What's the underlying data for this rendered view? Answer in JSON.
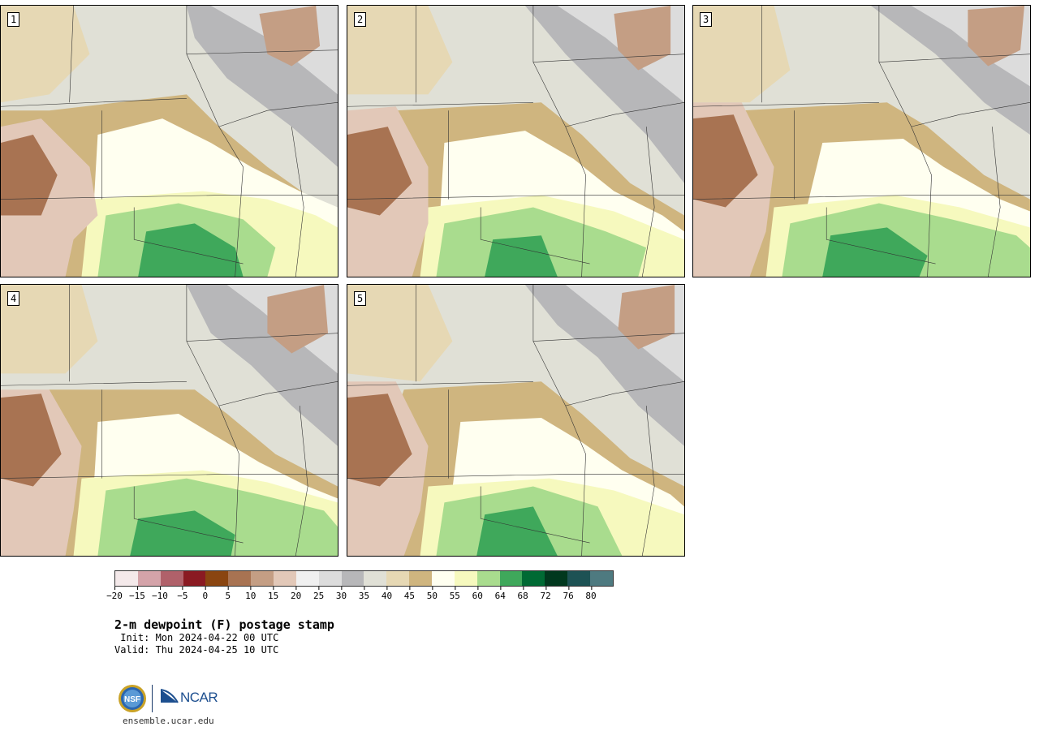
{
  "panels": [
    {
      "label": "1"
    },
    {
      "label": "2"
    },
    {
      "label": "3"
    },
    {
      "label": "4"
    },
    {
      "label": "5"
    }
  ],
  "colorbar": {
    "colors": [
      "#f4e9ea",
      "#d4a3a9",
      "#b0616a",
      "#8a1a22",
      "#8a4510",
      "#a87352",
      "#c49e84",
      "#e2c8b8",
      "#f0f0f0",
      "#dcdcdc",
      "#b7b7b9",
      "#e0e0d6",
      "#e6d8b4",
      "#cfb57f",
      "#fffff0",
      "#f6f9be",
      "#a9dc8e",
      "#3fa85b",
      "#006a34",
      "#01381e",
      "#1d5254",
      "#4e7a80"
    ],
    "tick_labels": [
      "-20",
      "-15",
      "-10",
      "-5",
      "0",
      "5",
      "10",
      "15",
      "20",
      "25",
      "30",
      "35",
      "40",
      "45",
      "50",
      "55",
      "60",
      "64",
      "68",
      "72",
      "76",
      "80"
    ]
  },
  "title": "2-m dewpoint (F) postage stamp",
  "init": " Init: Mon 2024-04-22 00 UTC",
  "valid": "Valid: Thu 2024-04-25 10 UTC",
  "logos": {
    "nsf": "NSF",
    "ncar": "NCAR"
  },
  "website": "ensemble.ucar.edu"
}
